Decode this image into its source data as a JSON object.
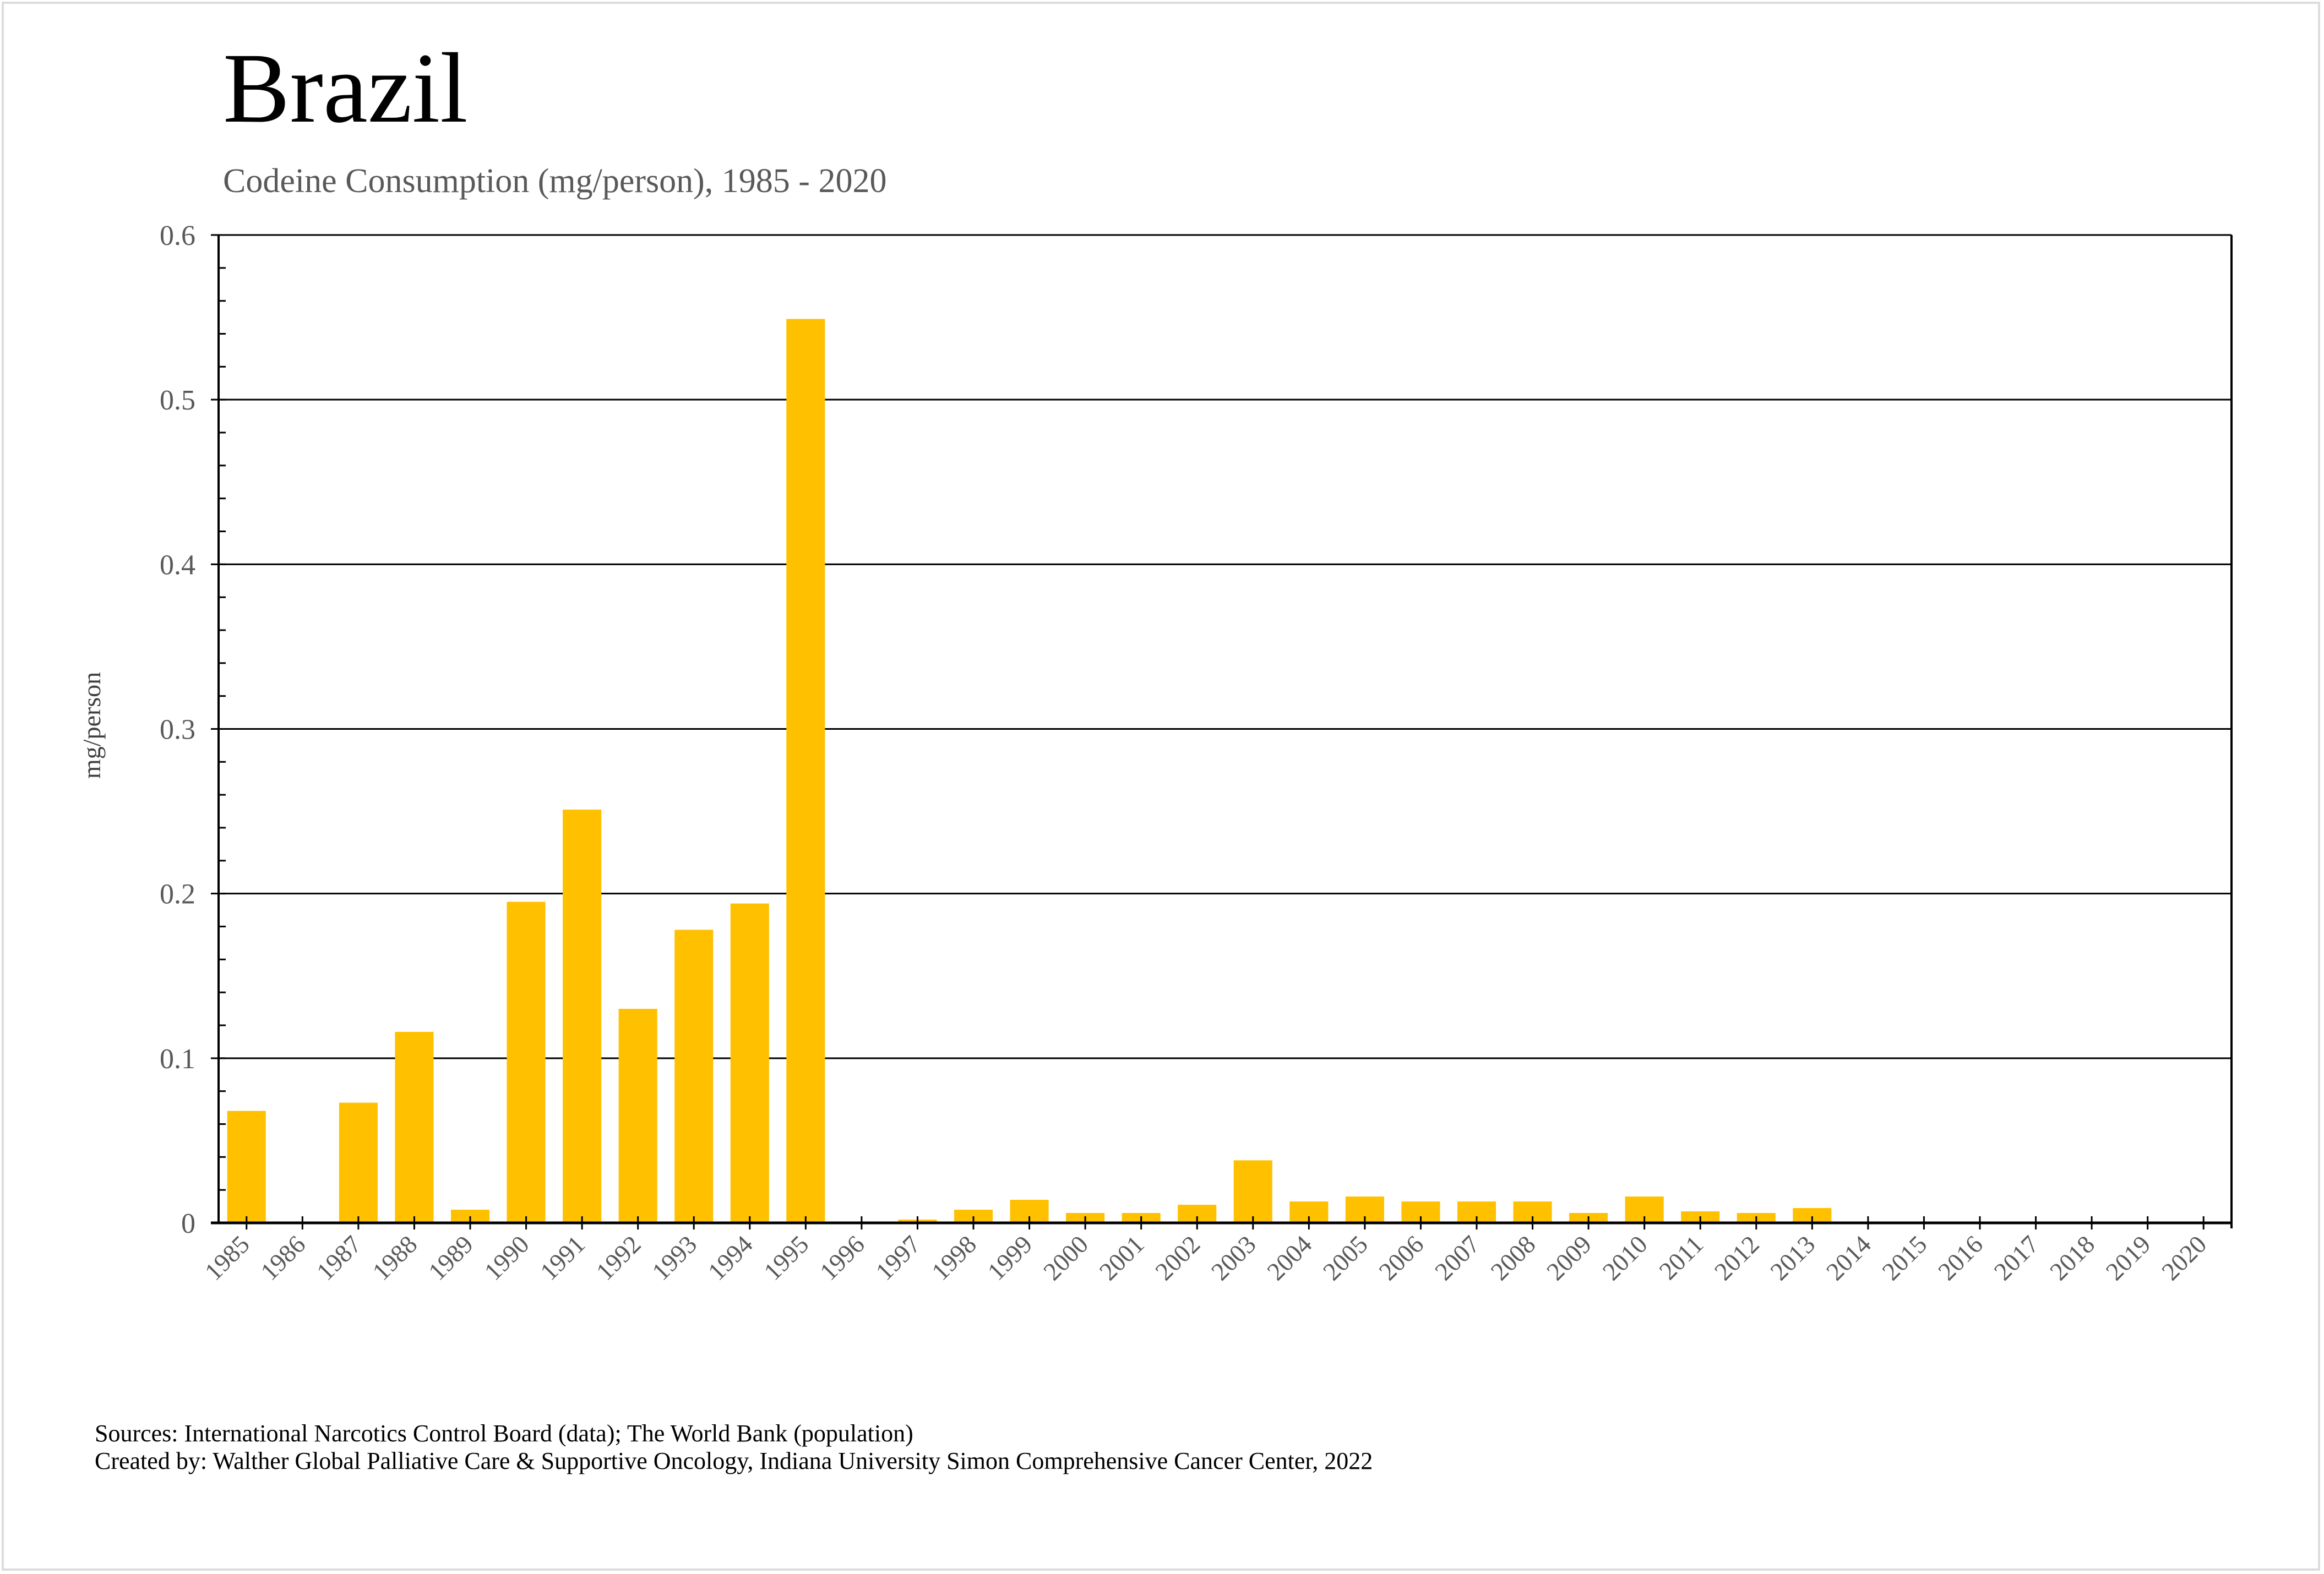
{
  "title": "Brazil",
  "subtitle": "Codeine Consumption (mg/person), 1985 - 2020",
  "footer": {
    "sources": "Sources: International Narcotics Control Board (data); The World Bank (population)",
    "created_by": "Created by: Walther Global Palliative Care & Supportive Oncology, Indiana University Simon Comprehensive Cancer Center, 2022"
  },
  "colors": {
    "bar": "#FFC000",
    "axis": "#000000",
    "tick_label": "#595959"
  },
  "chart_data": {
    "type": "bar",
    "title": "Brazil",
    "subtitle": "Codeine Consumption (mg/person), 1985 - 2020",
    "xlabel": "",
    "ylabel": "mg/person",
    "ylim": [
      0,
      0.6
    ],
    "yticks": [
      0,
      0.1,
      0.2,
      0.3,
      0.4,
      0.5,
      0.6
    ],
    "ytick_labels": [
      "0",
      "0.1",
      "0.2",
      "0.3",
      "0.4",
      "0.5",
      "0.6"
    ],
    "minor_ytick_step": 0.02,
    "grid": "horizontal major",
    "legend": "none",
    "categories": [
      "1985",
      "1986",
      "1987",
      "1988",
      "1989",
      "1990",
      "1991",
      "1992",
      "1993",
      "1994",
      "1995",
      "1996",
      "1997",
      "1998",
      "1999",
      "2000",
      "2001",
      "2002",
      "2003",
      "2004",
      "2005",
      "2006",
      "2007",
      "2008",
      "2009",
      "2010",
      "2011",
      "2012",
      "2013",
      "2014",
      "2015",
      "2016",
      "2017",
      "2018",
      "2019",
      "2020"
    ],
    "values": [
      0.068,
      0,
      0.073,
      0.116,
      0.008,
      0.195,
      0.251,
      0.13,
      0.178,
      0.194,
      0.549,
      0,
      0.002,
      0.008,
      0.014,
      0.006,
      0.006,
      0.011,
      0.038,
      0.013,
      0.016,
      0.013,
      0.013,
      0.013,
      0.006,
      0.016,
      0.007,
      0.006,
      0.009,
      0,
      0,
      0,
      0,
      0,
      0,
      0
    ]
  }
}
